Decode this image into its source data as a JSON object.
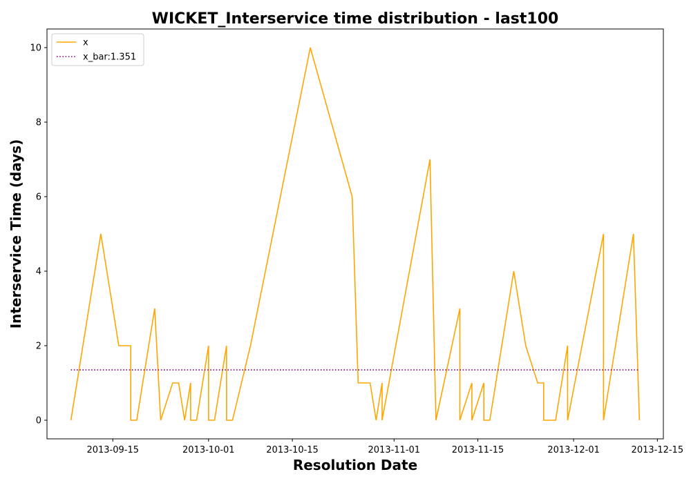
{
  "chart_data": {
    "type": "line",
    "title": "WICKET_Interservice time distribution - last100",
    "xlabel": "Resolution Date",
    "ylabel": "Interservice Time (days)",
    "x_ticks": [
      "2013-09-15",
      "2013-10-01",
      "2013-10-15",
      "2013-11-01",
      "2013-11-15",
      "2013-12-01",
      "2013-12-15"
    ],
    "y_ticks": [
      "0",
      "2",
      "4",
      "6",
      "8",
      "10"
    ],
    "xlim": [
      "2013-09-04",
      "2013-12-16"
    ],
    "ylim": [
      -0.5,
      10.5
    ],
    "legend_position": "upper-left",
    "grid": false,
    "series": [
      {
        "name": "x",
        "color": "#ffa500",
        "style": "solid",
        "points": [
          [
            "2013-09-08",
            0
          ],
          [
            "2013-09-13",
            5
          ],
          [
            "2013-09-16",
            2
          ],
          [
            "2013-09-18",
            2
          ],
          [
            "2013-09-18",
            0
          ],
          [
            "2013-09-19",
            0
          ],
          [
            "2013-09-22",
            3
          ],
          [
            "2013-09-23",
            0
          ],
          [
            "2013-09-25",
            1
          ],
          [
            "2013-09-26",
            1
          ],
          [
            "2013-09-27",
            0
          ],
          [
            "2013-09-28",
            1
          ],
          [
            "2013-09-28",
            0
          ],
          [
            "2013-09-29",
            0
          ],
          [
            "2013-10-01",
            2
          ],
          [
            "2013-10-01",
            0
          ],
          [
            "2013-10-02",
            0
          ],
          [
            "2013-10-04",
            2
          ],
          [
            "2013-10-04",
            0
          ],
          [
            "2013-10-05",
            0
          ],
          [
            "2013-10-08",
            2
          ],
          [
            "2013-10-18",
            10
          ],
          [
            "2013-10-25",
            6
          ],
          [
            "2013-10-26",
            1
          ],
          [
            "2013-10-28",
            1
          ],
          [
            "2013-10-29",
            0
          ],
          [
            "2013-10-30",
            1
          ],
          [
            "2013-10-30",
            0
          ],
          [
            "2013-11-07",
            7
          ],
          [
            "2013-11-08",
            0
          ],
          [
            "2013-11-12",
            3
          ],
          [
            "2013-11-12",
            0
          ],
          [
            "2013-11-14",
            1
          ],
          [
            "2013-11-14",
            0
          ],
          [
            "2013-11-16",
            1
          ],
          [
            "2013-11-16",
            0
          ],
          [
            "2013-11-17",
            0
          ],
          [
            "2013-11-21",
            4
          ],
          [
            "2013-11-23",
            2
          ],
          [
            "2013-11-25",
            1
          ],
          [
            "2013-11-26",
            1
          ],
          [
            "2013-11-26",
            0
          ],
          [
            "2013-11-28",
            0
          ],
          [
            "2013-11-30",
            2
          ],
          [
            "2013-11-30",
            0
          ],
          [
            "2013-12-06",
            5
          ],
          [
            "2013-12-06",
            0
          ],
          [
            "2013-12-11",
            5
          ],
          [
            "2013-12-12",
            0
          ]
        ]
      },
      {
        "name": "x_bar:1.351",
        "color": "#800080",
        "style": "dotted",
        "points": [
          [
            "2013-09-08",
            1.351
          ],
          [
            "2013-12-12",
            1.351
          ]
        ]
      }
    ]
  }
}
